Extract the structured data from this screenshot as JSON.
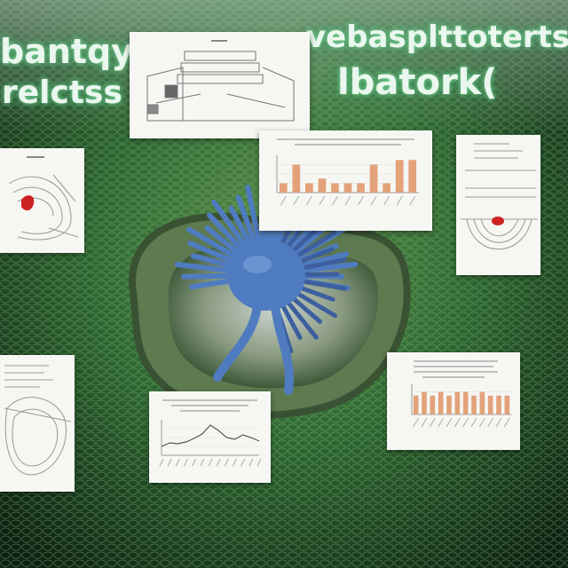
{
  "headlines": {
    "left_top": "bantqy",
    "left_bottom": "relctss",
    "right_top": "vebasplttoterts",
    "right_bottom": "lbatork("
  },
  "colors": {
    "background_dark": "#0f2a17",
    "background_green": "#3f7a3c",
    "bar_orange": "#e3a27a",
    "creature_blue": "#4f7cc0",
    "accent_red": "#cc2222",
    "card_paper": "#f6f7f3"
  },
  "chart_data": [
    {
      "type": "bar",
      "title": "",
      "categories": [
        "",
        "",
        "",
        "",
        "",
        "",
        "",
        "",
        "",
        "",
        ""
      ],
      "values": [
        2,
        6,
        2,
        3,
        2,
        2,
        2,
        6,
        2,
        7,
        7
      ],
      "ylim": [
        0,
        8
      ],
      "grid": true,
      "legend": "none"
    },
    {
      "type": "line",
      "title": "",
      "x": [
        0,
        1,
        2,
        3,
        4,
        5,
        6,
        7,
        8,
        9,
        10,
        11,
        12
      ],
      "y": [
        1.0,
        1.4,
        1.3,
        1.5,
        1.9,
        2.4,
        3.4,
        2.8,
        2.0,
        1.8,
        2.3,
        2.0,
        1.6
      ],
      "ylim": [
        0,
        4
      ],
      "grid": true,
      "legend": "none"
    },
    {
      "type": "bar",
      "title": "",
      "categories": [
        "",
        "",
        "",
        "",
        "",
        "",
        "",
        "",
        "",
        "",
        "",
        ""
      ],
      "values": [
        5,
        6,
        5,
        6,
        5,
        6,
        6,
        5,
        6,
        5,
        5,
        5
      ],
      "ylim": [
        0,
        8
      ],
      "grid": true,
      "legend": "none"
    }
  ]
}
